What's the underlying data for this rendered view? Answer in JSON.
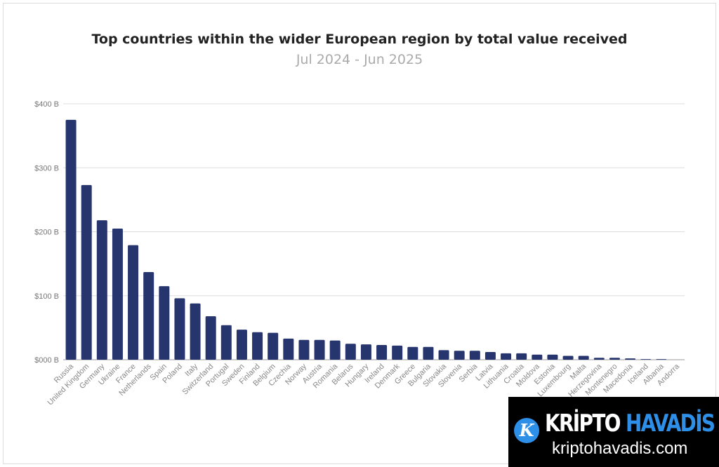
{
  "chart_data": {
    "type": "bar",
    "title": "Top countries within the wider European region by total value received",
    "subtitle": "Jul 2024 - Jun 2025",
    "xlabel": "",
    "ylabel": "",
    "ylim": [
      0,
      400
    ],
    "yticks": [
      "$000 B",
      "$100 B",
      "$200 B",
      "$300 B",
      "$400 B"
    ],
    "ytick_values": [
      0,
      100,
      200,
      300,
      400
    ],
    "grid": true,
    "bar_color": "#27356e",
    "categories": [
      "Russia",
      "United Kingdom",
      "Germany",
      "Ukraine",
      "France",
      "Netherlands",
      "Spain",
      "Poland",
      "Italy",
      "Switzerland",
      "Portugal",
      "Sweden",
      "Finland",
      "Belgium",
      "Czechia",
      "Norway",
      "Austria",
      "Romania",
      "Belarus",
      "Hungary",
      "Ireland",
      "Denmark",
      "Greece",
      "Bulgaria",
      "Slovakia",
      "Slovenia",
      "Serbia",
      "Latvia",
      "Lithuania",
      "Croatia",
      "Moldova",
      "Estonia",
      "Luxembourg",
      "Malta",
      "Herzegovina",
      "Montenegro",
      "Macedonia",
      "Iceland",
      "Albania",
      "Andorra"
    ],
    "values": [
      375,
      273,
      218,
      205,
      179,
      137,
      115,
      96,
      88,
      68,
      54,
      47,
      43,
      42,
      33,
      31,
      31,
      30,
      25,
      24,
      23,
      22,
      20,
      20,
      15,
      14,
      14,
      12,
      10,
      10,
      8,
      8,
      6,
      6,
      3,
      3,
      2,
      1,
      1,
      0
    ]
  },
  "watermark": {
    "brand_part1": "KRİPTO",
    "brand_part2": "HAVADİS",
    "url": "kriptohavadis.com",
    "logo_letter": "K"
  }
}
